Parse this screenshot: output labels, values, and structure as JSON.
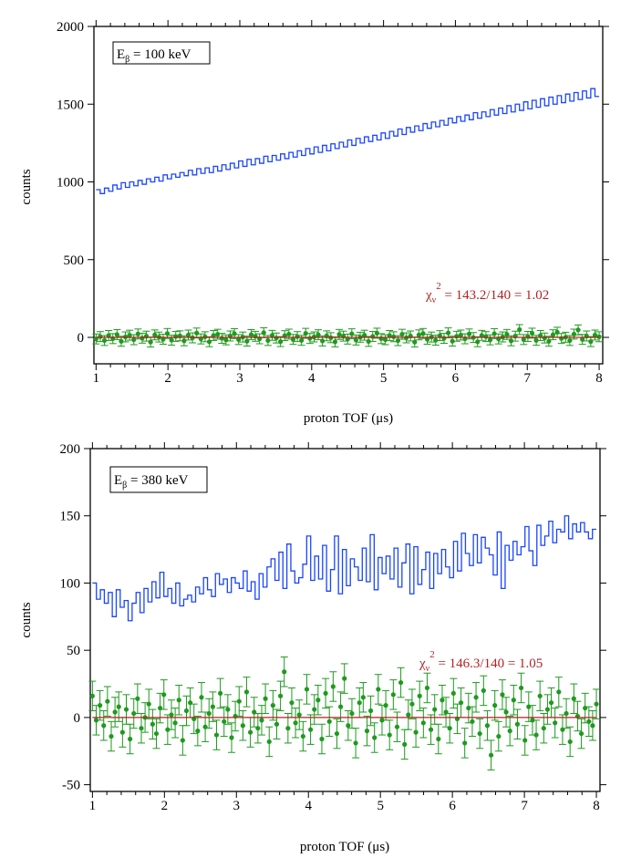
{
  "chart_data": [
    {
      "type": "line",
      "style": "histogram + error-bar residuals",
      "title": "",
      "xlabel": "proton TOF (μs)",
      "ylabel": "counts",
      "xlim": [
        0.97,
        8.05
      ],
      "ylim": [
        -170,
        2000
      ],
      "xticks": [
        "1",
        "2",
        "3",
        "4",
        "5",
        "6",
        "7",
        "8"
      ],
      "yticks": [
        0,
        500,
        1000,
        1500,
        2000
      ],
      "ytick_labels": [
        "0",
        "500",
        "1000",
        "1500",
        "2000"
      ],
      "legend_box": {
        "main": "E",
        "sub": "β",
        "rest": " = 100 keV"
      },
      "annotation": {
        "chi": "χ",
        "sub": "ν",
        "sup": "2",
        "rest": " = 143.2/140 = 1.02"
      },
      "histogram": {
        "name": "data",
        "x_start": 1.0,
        "x_end": 8.0,
        "values": [
          950,
          925,
          960,
          940,
          980,
          955,
          995,
          965,
          1000,
          975,
          1010,
          985,
          1020,
          1000,
          1030,
          1005,
          1045,
          1020,
          1050,
          1030,
          1060,
          1040,
          1075,
          1045,
          1085,
          1055,
          1090,
          1060,
          1100,
          1070,
          1110,
          1080,
          1120,
          1090,
          1135,
          1100,
          1145,
          1110,
          1150,
          1120,
          1165,
          1130,
          1170,
          1140,
          1180,
          1150,
          1190,
          1160,
          1200,
          1170,
          1215,
          1180,
          1225,
          1190,
          1235,
          1200,
          1245,
          1215,
          1255,
          1225,
          1270,
          1235,
          1280,
          1250,
          1290,
          1260,
          1300,
          1270,
          1315,
          1280,
          1325,
          1295,
          1340,
          1305,
          1350,
          1320,
          1360,
          1330,
          1375,
          1345,
          1385,
          1355,
          1395,
          1365,
          1410,
          1380,
          1420,
          1390,
          1430,
          1400,
          1445,
          1410,
          1450,
          1420,
          1465,
          1430,
          1475,
          1440,
          1490,
          1450,
          1500,
          1460,
          1515,
          1470,
          1525,
          1480,
          1535,
          1490,
          1545,
          1500,
          1555,
          1510,
          1565,
          1520,
          1575,
          1530,
          1585,
          1540,
          1600,
          1550
        ]
      },
      "fit": {
        "name": "fit",
        "color": "#b22222"
      },
      "residuals": {
        "name": "residuals",
        "x_start": 1.0,
        "x_end": 8.0,
        "values": [
          -10,
          5,
          -20,
          12,
          -8,
          18,
          -25,
          3,
          14,
          -15,
          22,
          -5,
          8,
          -30,
          16,
          2,
          -12,
          25,
          -18,
          6,
          10,
          -22,
          15,
          -3,
          28,
          -10,
          4,
          -28,
          12,
          20,
          -6,
          -16,
          9,
          24,
          -14,
          2,
          -24,
          18,
          7,
          -9,
          30,
          -20,
          13,
          -4,
          -27,
          11,
          21,
          -13,
          5,
          -19,
          26,
          -7,
          3,
          17,
          -23,
          10,
          -2,
          -29,
          19,
          8,
          -11,
          23,
          -17,
          1,
          14,
          -26,
          6,
          27,
          -8,
          -15,
          12,
          4,
          -21,
          20,
          -3,
          9,
          -30,
          16,
          25,
          -12,
          2,
          -18,
          11,
          -6,
          29,
          -24,
          7,
          15,
          -9,
          22,
          -1,
          -28,
          13,
          5,
          -16,
          24,
          -10,
          3,
          19,
          -22,
          8,
          50,
          -14,
          6,
          27,
          -19,
          12,
          -4,
          -25,
          17,
          33,
          -7,
          1,
          -20,
          21,
          48,
          -13,
          9,
          -27,
          15,
          4
        ],
        "error": 32
      },
      "colors": {
        "histogram": "#1a45ff",
        "residuals": "#1e9a1e",
        "fit": "#b22222",
        "annotation": "#b22222"
      }
    },
    {
      "type": "line",
      "style": "histogram + error-bar residuals",
      "title": "",
      "xlabel": "proton TOF (μs)",
      "ylabel": "counts",
      "xlim": [
        0.97,
        8.05
      ],
      "ylim": [
        -55,
        200
      ],
      "xticks": [
        "1",
        "2",
        "3",
        "4",
        "5",
        "6",
        "7",
        "8"
      ],
      "yticks": [
        -50,
        0,
        50,
        100,
        150,
        200
      ],
      "ytick_labels": [
        "-50",
        "0",
        "50",
        "100",
        "150",
        "200"
      ],
      "legend_box": {
        "main": "E",
        "sub": "β",
        "rest": " = 380 keV"
      },
      "annotation": {
        "chi": "χ",
        "sub": "ν",
        "sup": "2",
        "rest": " = 146.3/140 = 1.05"
      },
      "histogram": {
        "name": "data",
        "x_start": 1.0,
        "x_end": 8.0,
        "values": [
          100,
          88,
          95,
          85,
          93,
          75,
          95,
          82,
          87,
          72,
          85,
          93,
          78,
          96,
          86,
          101,
          89,
          108,
          90,
          96,
          85,
          100,
          83,
          88,
          91,
          86,
          97,
          92,
          104,
          95,
          90,
          107,
          99,
          103,
          93,
          104,
          100,
          96,
          109,
          94,
          101,
          88,
          107,
          97,
          112,
          118,
          102,
          123,
          96,
          129,
          109,
          100,
          104,
          114,
          135,
          102,
          120,
          103,
          128,
          94,
          110,
          135,
          92,
          125,
          98,
          118,
          112,
          102,
          126,
          101,
          136,
          95,
          119,
          107,
          120,
          103,
          126,
          97,
          115,
          129,
          92,
          127,
          99,
          110,
          123,
          96,
          122,
          107,
          125,
          112,
          104,
          131,
          109,
          137,
          122,
          113,
          136,
          115,
          134,
          126,
          121,
          106,
          138,
          96,
          128,
          117,
          131,
          121,
          127,
          142,
          124,
          113,
          143,
          128,
          135,
          146,
          130,
          140,
          138,
          150,
          133,
          144,
          138,
          145,
          138,
          133,
          140
        ]
      },
      "fit": {
        "name": "fit",
        "color": "#b22222"
      },
      "residuals": {
        "name": "residuals",
        "x_start": 1.0,
        "x_end": 8.0,
        "values": [
          16,
          -2,
          9,
          -6,
          12,
          -14,
          4,
          8,
          -11,
          6,
          -16,
          3,
          14,
          -8,
          0,
          10,
          -5,
          -12,
          7,
          17,
          -9,
          2,
          -4,
          13,
          -17,
          5,
          11,
          -1,
          -10,
          15,
          -7,
          3,
          8,
          -13,
          18,
          -3,
          6,
          -15,
          1,
          12,
          -6,
          19,
          -11,
          4,
          -8,
          -2,
          14,
          -18,
          9,
          -5,
          16,
          34,
          -8,
          11,
          -4,
          2,
          -14,
          21,
          -9,
          6,
          13,
          -16,
          18,
          -3,
          23,
          -12,
          8,
          29,
          -6,
          3,
          -19,
          11,
          15,
          -10,
          5,
          -15,
          21,
          -2,
          9,
          -13,
          17,
          -7,
          26,
          -20,
          2,
          10,
          -11,
          16,
          -4,
          22,
          -9,
          6,
          -16,
          13,
          4,
          -8,
          18,
          -1,
          11,
          -19,
          7,
          -3,
          15,
          -12,
          20,
          -6,
          -28,
          9,
          -14,
          17,
          4,
          -10,
          13,
          -5,
          22,
          -17,
          8,
          -2,
          -13,
          16,
          -8,
          6,
          11,
          -4,
          19,
          -9,
          3,
          -18,
          14,
          1,
          -12,
          7,
          -3,
          -6,
          10
        ],
        "error": 11
      },
      "colors": {
        "histogram": "#1a45ff",
        "residuals": "#1e9a1e",
        "fit": "#b22222",
        "annotation": "#b22222"
      }
    }
  ]
}
